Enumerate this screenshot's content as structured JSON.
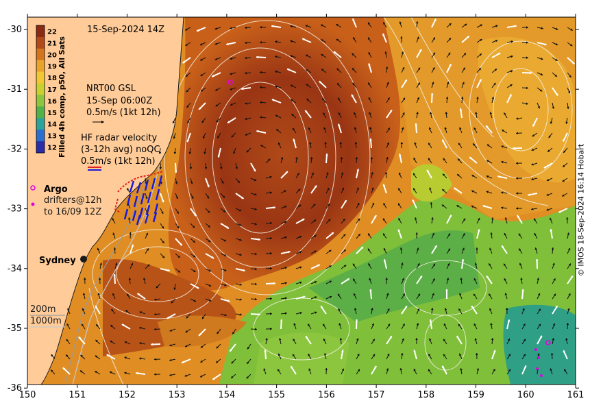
{
  "map": {
    "title_date": "15-Sep-2024 14Z",
    "colorbar": {
      "label": "Filled 4h comp, p50, All Sats",
      "ticks": [
        "22",
        "21",
        "20",
        "19",
        "18",
        "17",
        "16",
        "15",
        "14",
        "13",
        "12"
      ],
      "colors": [
        "#8b2a12",
        "#b14a18",
        "#d4741c",
        "#e8a42a",
        "#f2c832",
        "#c8d12e",
        "#8cc63e",
        "#52b24a",
        "#2aa39a",
        "#2a6fd0",
        "#2a2ca8"
      ]
    },
    "x_ticks": [
      "150",
      "151",
      "152",
      "153",
      "154",
      "155",
      "156",
      "157",
      "158",
      "159",
      "160",
      "161"
    ],
    "y_ticks": [
      "-30",
      "-31",
      "-32",
      "-33",
      "-34",
      "-35",
      "-36"
    ],
    "legend": {
      "nrt_line1": "NRT00 GSL",
      "nrt_line2": "15-Sep 06:00Z",
      "nrt_line3": "0.5m/s (1kt 12h)",
      "hf_line1": "HF radar velocity",
      "hf_line2": "(3-12h avg) noQC",
      "hf_line3": "0.5m/s (1kt 12h)",
      "argo_label": "Argo",
      "drifter_line1": "drifters@12h",
      "drifter_line2": "to 16/09 12Z",
      "depth_200": "200m",
      "depth_1000": "1000m"
    },
    "place_label": "Sydney",
    "credit": "© IMOS 18-Sep-2024 16:14 Hobart",
    "colors": {
      "land": "#ffcc99",
      "eac_core": "#8b2a12",
      "warm": "#d4741c",
      "cool": "#52b24a",
      "cold": "#2aa39a",
      "arrow": "#ffffff",
      "hf_radar": "#1a1ad6",
      "argo": "#e000e0"
    }
  }
}
